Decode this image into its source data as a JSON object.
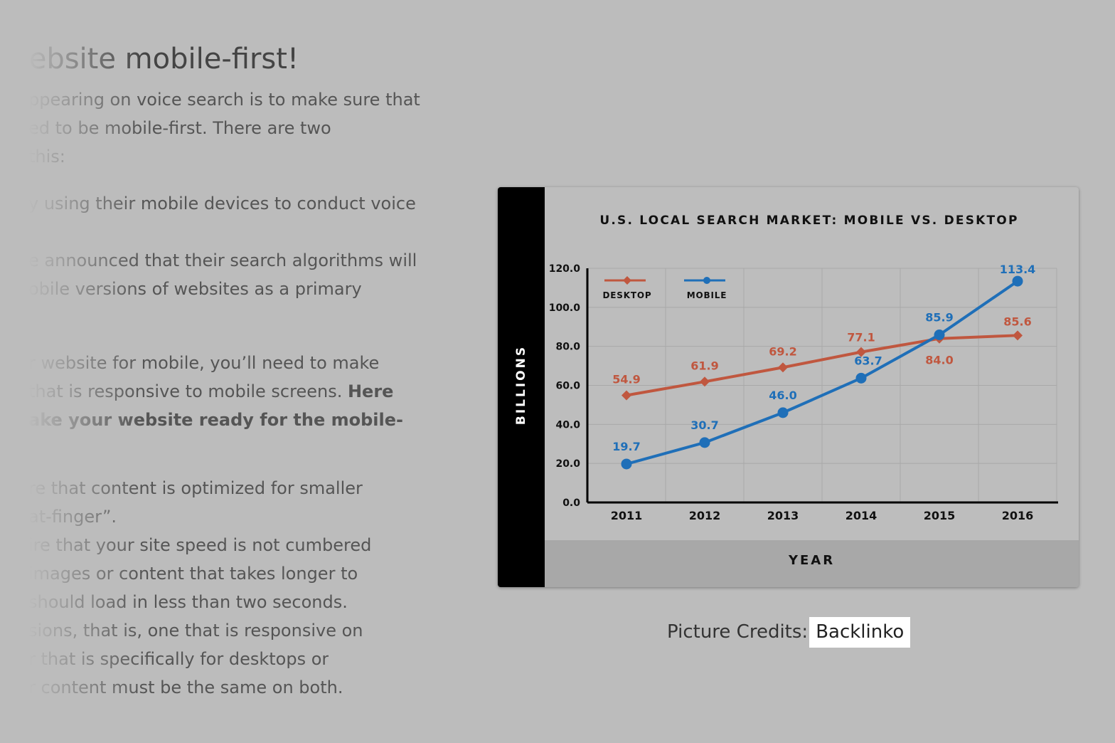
{
  "article": {
    "heading": "website mobile-first!",
    "lines": [
      {
        "text": "ppearing on voice search is to make sure that",
        "bold": false
      },
      {
        "text": "ed to be mobile-first. There are two",
        "bold": false
      },
      {
        "text": "this:",
        "bold": false
      },
      {
        "text": "y using their mobile devices to conduct voice",
        "bold": false
      },
      {
        "text": "e announced that their search algorithms will",
        "bold": false
      },
      {
        "text": "obile versions of websites as a primary",
        "bold": false
      },
      {
        "text": "r website for mobile, you’ll need to make",
        "bold": false
      },
      {
        "text": "that is responsive to mobile screens. ",
        "bold": false,
        "bold_tail": "Here"
      },
      {
        "text": "ake your website ready for the mobile-",
        "bold": true
      },
      {
        "text": "re that content is optimized for smaller",
        "bold": false
      },
      {
        "text": "at-finger”.",
        "bold": false
      },
      {
        "text": "ire that your site speed is not cumbered",
        "bold": false
      },
      {
        "text": "images or content that takes longer to",
        "bold": false
      },
      {
        "text": "should load in less than two seconds.",
        "bold": false
      },
      {
        "text": "sions, that is, one that is responsive on",
        "bold": false
      },
      {
        "text": "r that is specifically for desktops or",
        "bold": false
      },
      {
        "text": "r content must be the same on both.",
        "bold": false
      }
    ]
  },
  "chart_data": {
    "type": "line",
    "title": "U.S. LOCAL SEARCH MARKET: MOBILE VS. DESKTOP",
    "xlabel": "YEAR",
    "ylabel": "BILLIONS",
    "categories": [
      "2011",
      "2012",
      "2013",
      "2014",
      "2015",
      "2016"
    ],
    "ylim": [
      0,
      120
    ],
    "yticks": [
      "0.0",
      "20.0",
      "40.0",
      "60.0",
      "80.0",
      "100.0",
      "120.0"
    ],
    "grid": true,
    "legend_position": "top-left",
    "series": [
      {
        "name": "DESKTOP",
        "color": "#c0573f",
        "marker": "diamond",
        "values": [
          54.9,
          61.9,
          69.2,
          77.1,
          84.0,
          85.6
        ],
        "labels": [
          "54.9",
          "61.9",
          "69.2",
          "77.1",
          "84.0",
          "85.6"
        ]
      },
      {
        "name": "MOBILE",
        "color": "#1f6fb8",
        "marker": "circle",
        "values": [
          19.7,
          30.7,
          46.0,
          63.7,
          85.9,
          113.4
        ],
        "labels": [
          "19.7",
          "30.7",
          "46.0",
          "63.7",
          "85.9",
          "113.4"
        ]
      }
    ]
  },
  "credits": {
    "prefix": "Picture Credits:",
    "link": "Backlinko"
  }
}
